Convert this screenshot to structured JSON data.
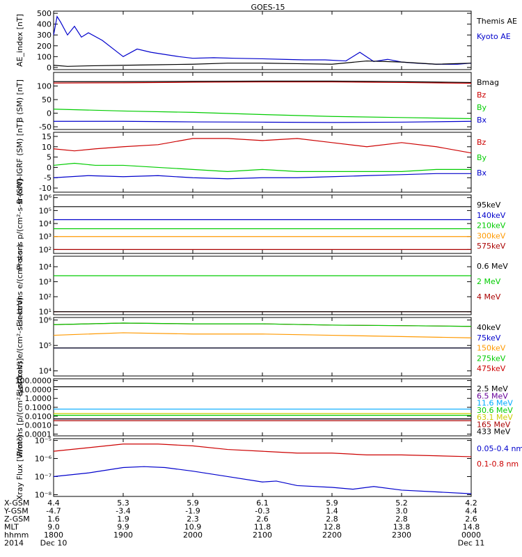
{
  "title": "GOES-15",
  "colors": {
    "black": "#000000",
    "red": "#cc0000",
    "green": "#00cc00",
    "blue": "#0000cc",
    "orange": "#ff9900",
    "cyan": "#00aaff",
    "purple": "#660099",
    "yellow": "#cccc00",
    "darkred": "#aa0000"
  },
  "chart_data": [
    {
      "type": "line",
      "ylabel": "AE_index [nT]",
      "yscale": "linear",
      "ylim": [
        -20,
        520
      ],
      "yticks": [
        {
          "v": 500,
          "t": "500"
        },
        {
          "v": 400,
          "t": "400"
        },
        {
          "v": 300,
          "t": "300"
        },
        {
          "v": 200,
          "t": "200"
        },
        {
          "v": 100,
          "t": "100"
        },
        {
          "v": 0,
          "t": "0"
        }
      ],
      "series": [
        {
          "name": "Kyoto AE",
          "color": "blue",
          "x": [
            0,
            0.05,
            0.1,
            0.2,
            0.3,
            0.4,
            0.5,
            0.7,
            0.9,
            1.0,
            1.2,
            1.4,
            1.6,
            1.8,
            2.0,
            2.3,
            2.6,
            3.0,
            3.3,
            3.6,
            3.9,
            4.2,
            4.4,
            4.6,
            4.8,
            5.0,
            5.2,
            5.5,
            5.8,
            6.0
          ],
          "y": [
            300,
            470,
            420,
            300,
            380,
            280,
            320,
            250,
            150,
            100,
            170,
            140,
            120,
            100,
            85,
            90,
            85,
            80,
            75,
            70,
            70,
            60,
            140,
            55,
            75,
            50,
            40,
            30,
            30,
            40
          ]
        },
        {
          "name": "Themis AE",
          "color": "black",
          "x": [
            0,
            0.2,
            0.5,
            1.0,
            1.5,
            2.0,
            2.5,
            3.0,
            3.5,
            4.0,
            4.5,
            5.0,
            5.5,
            6.0
          ],
          "y": [
            20,
            10,
            15,
            20,
            25,
            30,
            40,
            40,
            35,
            30,
            60,
            50,
            30,
            40
          ]
        }
      ]
    },
    {
      "type": "line",
      "ylabel": "B (SM) [nT]",
      "yscale": "linear",
      "ylim": [
        -60,
        150
      ],
      "yticks": [
        {
          "v": 100,
          "t": "100"
        },
        {
          "v": 50,
          "t": "50"
        },
        {
          "v": 0,
          "t": "0"
        },
        {
          "v": -50,
          "t": "-50"
        }
      ],
      "series": [
        {
          "name": "Bx",
          "color": "blue",
          "x": [
            0,
            1,
            2,
            3,
            4,
            5,
            6
          ],
          "y": [
            -30,
            -30,
            -32,
            -33,
            -34,
            -33,
            -30
          ]
        },
        {
          "name": "By",
          "color": "green",
          "x": [
            0,
            1,
            2,
            3,
            4,
            5,
            6
          ],
          "y": [
            15,
            8,
            3,
            -5,
            -12,
            -16,
            -20
          ]
        },
        {
          "name": "Bz",
          "color": "red",
          "x": [
            0,
            1,
            2,
            3,
            4,
            5,
            6
          ],
          "y": [
            111,
            112,
            114,
            115,
            115,
            113,
            110
          ]
        },
        {
          "name": "Bmag",
          "color": "black",
          "x": [
            0,
            1,
            2,
            3,
            4,
            5,
            6
          ],
          "y": [
            116,
            116,
            117,
            118,
            118,
            116,
            113
          ]
        }
      ]
    },
    {
      "type": "line",
      "ylabel": "B (SM)-IGRF (SM) [nT]",
      "yscale": "linear",
      "ylim": [
        -12,
        17
      ],
      "yticks": [
        {
          "v": 15,
          "t": "15"
        },
        {
          "v": 10,
          "t": "10"
        },
        {
          "v": 5,
          "t": "5"
        },
        {
          "v": 0,
          "t": "0"
        },
        {
          "v": -5,
          "t": "-5"
        },
        {
          "v": -10,
          "t": "-10"
        }
      ],
      "series": [
        {
          "name": "Bx",
          "color": "blue",
          "x": [
            0,
            0.5,
            1,
            1.5,
            2,
            2.5,
            3,
            3.5,
            4,
            4.5,
            5,
            5.5,
            6
          ],
          "y": [
            -5,
            -4,
            -4.5,
            -4,
            -5,
            -5.5,
            -5,
            -5,
            -4.5,
            -4,
            -3.5,
            -3,
            -3
          ]
        },
        {
          "name": "By",
          "color": "green",
          "x": [
            0,
            0.3,
            0.6,
            1,
            1.5,
            2,
            2.5,
            3,
            3.5,
            4,
            4.5,
            5,
            5.5,
            6
          ],
          "y": [
            1,
            2,
            1,
            1,
            0,
            -1,
            -2,
            -1,
            -2,
            -2,
            -2,
            -2,
            -1,
            -1
          ]
        },
        {
          "name": "Bz",
          "color": "red",
          "x": [
            0,
            0.3,
            0.6,
            1,
            1.5,
            2,
            2.5,
            3,
            3.5,
            4,
            4.5,
            5,
            5.5,
            6
          ],
          "y": [
            9,
            8,
            9,
            10,
            11,
            14,
            14,
            13,
            14,
            12,
            10,
            12,
            10,
            7
          ]
        }
      ]
    },
    {
      "type": "line",
      "ylabel": "Protons p/(cm²-s-sr-keV)",
      "yscale": "log",
      "ylim": [
        1.7,
        6.2
      ],
      "yticks": [
        {
          "v": 6,
          "t": "10⁶"
        },
        {
          "v": 5,
          "t": "10⁵"
        },
        {
          "v": 4,
          "t": "10⁴"
        },
        {
          "v": 3,
          "t": "10³"
        },
        {
          "v": 2,
          "t": "10²"
        }
      ],
      "series": [
        {
          "name": "575keV",
          "color": "darkred",
          "x": [
            0,
            6
          ],
          "y": [
            2.0,
            2.0
          ]
        },
        {
          "name": "300keV",
          "color": "orange",
          "x": [
            0,
            6
          ],
          "y": [
            3.0,
            3.0
          ]
        },
        {
          "name": "210keV",
          "color": "green",
          "x": [
            0,
            6
          ],
          "y": [
            3.6,
            3.6
          ]
        },
        {
          "name": "140keV",
          "color": "blue",
          "x": [
            0,
            6
          ],
          "y": [
            4.3,
            4.3
          ]
        },
        {
          "name": "95keV",
          "color": "black",
          "x": [
            0,
            6
          ],
          "y": [
            5.3,
            5.3
          ]
        }
      ]
    },
    {
      "type": "line",
      "ylabel": "Electrons e/(cm²-s-sr)",
      "yscale": "log",
      "ylim": [
        0.8,
        4.7
      ],
      "yticks": [
        {
          "v": 4,
          "t": "10⁴"
        },
        {
          "v": 3,
          "t": "10³"
        },
        {
          "v": 2,
          "t": "10²"
        },
        {
          "v": 1,
          "t": "10¹"
        }
      ],
      "series": [
        {
          "name": "4 MeV",
          "color": "darkred",
          "x": [
            0,
            6
          ],
          "y": [
            1.0,
            1.0
          ]
        },
        {
          "name": "2 MeV",
          "color": "green",
          "x": [
            0,
            6
          ],
          "y": [
            3.4,
            3.4
          ]
        },
        {
          "name": "0.6 MeV",
          "color": "black",
          "x": [
            0,
            6
          ],
          "y": [
            1.0,
            1.0
          ]
        }
      ]
    },
    {
      "type": "line",
      "ylabel": "Electrons e/(cm²-s-sr-keV)",
      "yscale": "log",
      "ylim": [
        3.8,
        6.1
      ],
      "yticks": [
        {
          "v": 6,
          "t": "10⁶"
        },
        {
          "v": 5,
          "t": "10⁵"
        },
        {
          "v": 4,
          "t": "10⁴"
        }
      ],
      "series": [
        {
          "name": "475keV",
          "color": "red",
          "x": [
            0,
            1,
            2,
            3,
            4,
            5,
            6
          ],
          "y": [
            5.82,
            5.88,
            5.85,
            5.85,
            5.8,
            5.78,
            5.75
          ]
        },
        {
          "name": "275keV",
          "color": "green",
          "x": [
            0,
            1,
            2,
            3,
            4,
            5,
            6
          ],
          "y": [
            5.82,
            5.88,
            5.85,
            5.85,
            5.8,
            5.78,
            5.75
          ]
        },
        {
          "name": "150keV",
          "color": "orange",
          "x": [
            0,
            1,
            2,
            3,
            4,
            5,
            6
          ],
          "y": [
            5.4,
            5.5,
            5.45,
            5.45,
            5.4,
            5.35,
            5.3
          ]
        },
        {
          "name": "75keV",
          "color": "blue",
          "x": [
            0,
            6
          ],
          "y": [
            4.9,
            4.9
          ]
        },
        {
          "name": "40keV",
          "color": "black",
          "x": [
            0,
            6
          ],
          "y": [
            4.9,
            4.9
          ]
        }
      ]
    },
    {
      "type": "line",
      "ylabel": "Protons [p/(cm²-s-sr-keV)]",
      "yscale": "log",
      "ylim": [
        -4.2,
        2.2
      ],
      "yticks": [
        {
          "v": 2,
          "t": "100.0000"
        },
        {
          "v": 1,
          "t": "10.0000"
        },
        {
          "v": 0,
          "t": "1.0000"
        },
        {
          "v": -1,
          "t": "0.1000"
        },
        {
          "v": -2,
          "t": "0.0100"
        },
        {
          "v": -3,
          "t": "0.0010"
        },
        {
          "v": -4,
          "t": "0.0001"
        }
      ],
      "series": [
        {
          "name": "433 MeV",
          "color": "black",
          "x": [
            0,
            6
          ],
          "y": [
            1.3,
            1.3
          ]
        },
        {
          "name": "165 MeV",
          "color": "darkred",
          "x": [
            0,
            6
          ],
          "y": [
            -2.5,
            -2.5
          ]
        },
        {
          "name": "63.1 MeV",
          "color": "yellow",
          "x": [
            0,
            6
          ],
          "y": [
            -1.7,
            -1.7
          ]
        },
        {
          "name": "30.6 MeV",
          "color": "green",
          "x": [
            0,
            6
          ],
          "y": [
            -1.9,
            -1.9
          ]
        },
        {
          "name": "11.6 MeV",
          "color": "cyan",
          "x": [
            0,
            6
          ],
          "y": [
            -1.2,
            -1.2
          ]
        },
        {
          "name": "6.5 MeV",
          "color": "purple",
          "x": [
            0,
            6
          ],
          "y": [
            -2.3,
            -2.3
          ]
        },
        {
          "name": "2.5 MeV",
          "color": "black",
          "x": [
            0,
            6
          ],
          "y": [
            -2.3,
            -2.3
          ]
        }
      ]
    },
    {
      "type": "line",
      "ylabel": "Xray Flux [W/m²]",
      "yscale": "log",
      "ylim": [
        -8.1,
        -4.9
      ],
      "yticks": [
        {
          "v": -5,
          "t": "10⁻⁵"
        },
        {
          "v": -6,
          "t": "10⁻⁶"
        },
        {
          "v": -7,
          "t": "10⁻⁷"
        },
        {
          "v": -8,
          "t": "10⁻⁸"
        }
      ],
      "series": [
        {
          "name": "0.1-0.8 nm",
          "color": "red",
          "x": [
            0,
            0.5,
            1.0,
            1.5,
            2.0,
            2.5,
            3.0,
            3.5,
            4.0,
            4.5,
            5.0,
            5.5,
            6.0
          ],
          "y": [
            -5.6,
            -5.4,
            -5.2,
            -5.2,
            -5.3,
            -5.5,
            -5.6,
            -5.7,
            -5.7,
            -5.8,
            -5.8,
            -5.85,
            -5.9
          ]
        },
        {
          "name": "0.05-0.4 nm",
          "color": "blue",
          "x": [
            0,
            0.5,
            1.0,
            1.3,
            1.6,
            2.0,
            2.5,
            3.0,
            3.2,
            3.5,
            4.0,
            4.3,
            4.6,
            5.0,
            5.5,
            6.0
          ],
          "y": [
            -7.0,
            -6.8,
            -6.5,
            -6.45,
            -6.5,
            -6.7,
            -7.0,
            -7.3,
            -7.25,
            -7.5,
            -7.6,
            -7.7,
            -7.55,
            -7.75,
            -7.85,
            -7.95
          ]
        }
      ]
    }
  ],
  "axis_footer": {
    "row_labels": [
      "X-GSM",
      "Y-GSM",
      "Z-GSM",
      "MLT",
      "hhmm",
      "2014"
    ],
    "columns": [
      [
        "4.4",
        "-4.7",
        "1.6",
        "9.0",
        "1800",
        "Dec 10"
      ],
      [
        "5.3",
        "-3.4",
        "1.9",
        "9.9",
        "1900",
        ""
      ],
      [
        "5.9",
        "-1.9",
        "2.3",
        "10.9",
        "2000",
        ""
      ],
      [
        "6.1",
        "-0.3",
        "2.6",
        "11.8",
        "2100",
        ""
      ],
      [
        "5.9",
        "1.4",
        "2.8",
        "12.8",
        "2200",
        ""
      ],
      [
        "5.2",
        "3.0",
        "2.8",
        "13.8",
        "2300",
        ""
      ],
      [
        "4.2",
        "4.4",
        "2.6",
        "14.8",
        "0000",
        "Dec 11"
      ]
    ]
  }
}
